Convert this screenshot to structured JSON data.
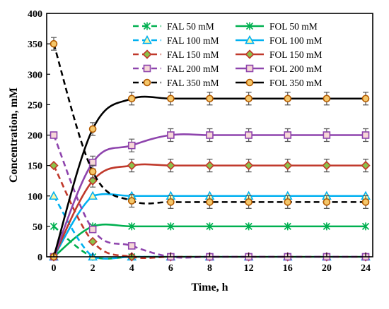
{
  "chart_data": {
    "type": "line",
    "xlabel": "Time, h",
    "ylabel": "Concentration, mM",
    "ylim": [
      0,
      400
    ],
    "yticks": [
      "0",
      "50",
      "100",
      "150",
      "200",
      "250",
      "300",
      "350",
      "400"
    ],
    "x": [
      0,
      2,
      4,
      6,
      8,
      12,
      16,
      20,
      24
    ],
    "xticks": [
      "0",
      "2",
      "4",
      "6",
      "8",
      "12",
      "16",
      "20",
      "24"
    ],
    "grid": false,
    "legend_position": "top-right",
    "series": [
      {
        "name": "FAL 50 mM",
        "color": "#00b050",
        "marker": "x-star",
        "dashed": true,
        "error_bars": false,
        "values": [
          50,
          0,
          0,
          0,
          0,
          0,
          0,
          0,
          0
        ]
      },
      {
        "name": "FOL 50 mM",
        "color": "#00b050",
        "marker": "x-star",
        "dashed": false,
        "error_bars": false,
        "values": [
          0,
          50,
          50,
          50,
          50,
          50,
          50,
          50,
          50
        ]
      },
      {
        "name": "FAL 100 mM",
        "color": "#00b0f0",
        "marker": "triangle",
        "dashed": true,
        "error_bars": false,
        "values": [
          100,
          0,
          0,
          0,
          0,
          0,
          0,
          0,
          0
        ]
      },
      {
        "name": "FOL 100 mM",
        "color": "#00b0f0",
        "marker": "triangle",
        "dashed": false,
        "error_bars": false,
        "values": [
          0,
          100,
          100,
          100,
          100,
          100,
          100,
          100,
          100
        ]
      },
      {
        "name": "FAL 150 mM",
        "color": "#c0392b",
        "marker": "diamond",
        "dashed": true,
        "error_bars": false,
        "values": [
          150,
          25,
          0,
          0,
          0,
          0,
          0,
          0,
          0
        ]
      },
      {
        "name": "FOL 150 mM",
        "color": "#c0392b",
        "marker": "diamond",
        "dashed": false,
        "error_bars": true,
        "values": [
          0,
          125,
          150,
          150,
          150,
          150,
          150,
          150,
          150
        ]
      },
      {
        "name": "FAL 200 mM",
        "color": "#8e44ad",
        "marker": "square",
        "dashed": true,
        "error_bars": false,
        "values": [
          200,
          45,
          18,
          0,
          0,
          0,
          0,
          0,
          0
        ]
      },
      {
        "name": "FOL 200 mM",
        "color": "#8e44ad",
        "marker": "square",
        "dashed": false,
        "error_bars": true,
        "values": [
          0,
          155,
          183,
          200,
          200,
          200,
          200,
          200,
          200
        ]
      },
      {
        "name": "FAL 350 mM",
        "color": "#000000",
        "marker": "circle",
        "dashed": true,
        "error_bars": true,
        "values": [
          350,
          140,
          92,
          90,
          90,
          90,
          90,
          90,
          90
        ]
      },
      {
        "name": "FOL 350 mM",
        "color": "#000000",
        "marker": "circle",
        "dashed": false,
        "error_bars": true,
        "values": [
          0,
          210,
          260,
          260,
          260,
          260,
          260,
          260,
          260
        ]
      }
    ]
  }
}
